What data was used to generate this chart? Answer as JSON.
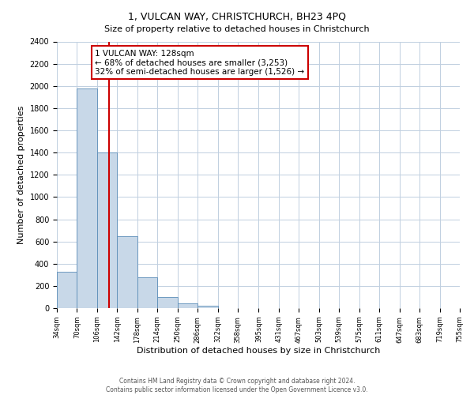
{
  "title": "1, VULCAN WAY, CHRISTCHURCH, BH23 4PQ",
  "subtitle": "Size of property relative to detached houses in Christchurch",
  "xlabel": "Distribution of detached houses by size in Christchurch",
  "ylabel": "Number of detached properties",
  "bar_edges": [
    34,
    70,
    106,
    142,
    178,
    214,
    250,
    286,
    322,
    358,
    395,
    431,
    467,
    503,
    539,
    575,
    611,
    647,
    683,
    719,
    755
  ],
  "bar_heights": [
    325,
    1975,
    1400,
    650,
    275,
    100,
    40,
    20,
    0,
    0,
    0,
    0,
    0,
    0,
    0,
    0,
    0,
    0,
    0,
    0
  ],
  "bar_color": "#c8d8e8",
  "bar_edge_color": "#5b8db8",
  "property_line_x": 128,
  "property_line_color": "#cc0000",
  "annotation_text_line1": "1 VULCAN WAY: 128sqm",
  "annotation_text_line2": "← 68% of detached houses are smaller (3,253)",
  "annotation_text_line3": "32% of semi-detached houses are larger (1,526) →",
  "ylim": [
    0,
    2400
  ],
  "yticks": [
    0,
    200,
    400,
    600,
    800,
    1000,
    1200,
    1400,
    1600,
    1800,
    2000,
    2200,
    2400
  ],
  "tick_labels": [
    "34sqm",
    "70sqm",
    "106sqm",
    "142sqm",
    "178sqm",
    "214sqm",
    "250sqm",
    "286sqm",
    "322sqm",
    "358sqm",
    "395sqm",
    "431sqm",
    "467sqm",
    "503sqm",
    "539sqm",
    "575sqm",
    "611sqm",
    "647sqm",
    "683sqm",
    "719sqm",
    "755sqm"
  ],
  "footer_line1": "Contains HM Land Registry data © Crown copyright and database right 2024.",
  "footer_line2": "Contains public sector information licensed under the Open Government Licence v3.0.",
  "background_color": "#ffffff",
  "grid_color": "#c0cfe0"
}
